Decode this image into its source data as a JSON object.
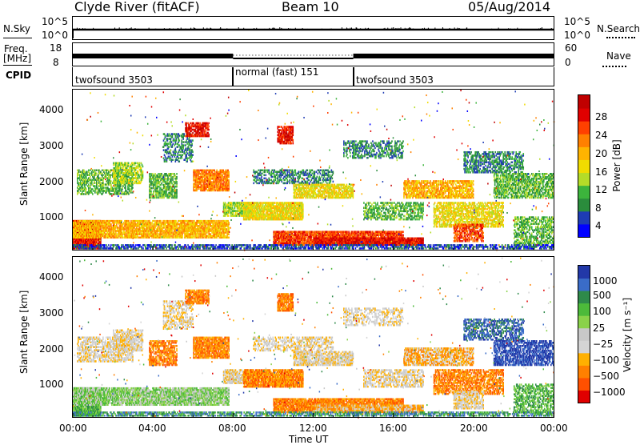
{
  "header": {
    "title_left": "Clyde River (fitACF)",
    "title_center": "Beam 10",
    "title_right": "05/Aug/2014"
  },
  "top_panels": {
    "nsky": {
      "label": "N.Sky",
      "tick_high": "10^5",
      "tick_low": "10^0"
    },
    "nsearch": {
      "label": "N.Search",
      "tick_high": "10^5",
      "tick_low": "10^0"
    },
    "freq": {
      "label_line1": "Freq.",
      "label_line2": "[MHz]",
      "tick_high": "18",
      "tick_low": "8"
    },
    "nave": {
      "label": "Nave",
      "tick_high": "60",
      "tick_low": "0"
    },
    "cpid": {
      "label": "CPID",
      "segments": [
        {
          "name": "twofsound 3503",
          "start_hour": 0,
          "end_hour": 8
        },
        {
          "name": "normal (fast) 151",
          "start_hour": 8,
          "end_hour": 14
        },
        {
          "name": "twofsound 3503",
          "start_hour": 14,
          "end_hour": 24
        }
      ]
    }
  },
  "colors": {
    "power_scale": [
      "#0000ff",
      "#1e3cb4",
      "#2a8c3c",
      "#3cb43c",
      "#b4dc28",
      "#f0dc00",
      "#ffb400",
      "#ff8000",
      "#ff4000",
      "#e00000",
      "#c00000"
    ],
    "velocity_scale": [
      "#2238a8",
      "#3a6cc8",
      "#2e8a4a",
      "#4cba3a",
      "#8ad24a",
      "#c8c8c8",
      "#d4d4d4",
      "#ffb000",
      "#ff8000",
      "#ff5000",
      "#e00000"
    ]
  },
  "chart_data": [
    {
      "type": "heatmap",
      "name": "power",
      "xlabel": "",
      "ylabel": "Slant Range [km]",
      "x_range_hours": [
        0,
        24
      ],
      "ylim": [
        180,
        4600
      ],
      "yticks": [
        "1000",
        "2000",
        "3000",
        "4000"
      ],
      "colorbar": {
        "label": "Power [dB]",
        "ticks": [
          "4",
          "8",
          "12",
          "16",
          "20",
          "24",
          "28"
        ],
        "range": [
          0,
          30
        ]
      }
    },
    {
      "type": "heatmap",
      "name": "velocity",
      "xlabel": "Time UT",
      "ylabel": "Slant Range [km]",
      "x_range_hours": [
        0,
        24
      ],
      "ylim": [
        180,
        4600
      ],
      "xticks": [
        "00:00",
        "04:00",
        "08:00",
        "12:00",
        "16:00",
        "20:00",
        "00:00"
      ],
      "yticks": [
        "1000",
        "2000",
        "3000",
        "4000"
      ],
      "colorbar": {
        "label": "Velocity [m s⁻¹]",
        "ticks": [
          "1000",
          "500",
          "100",
          "25",
          "−25",
          "−100",
          "−500",
          "−1000"
        ]
      }
    }
  ]
}
